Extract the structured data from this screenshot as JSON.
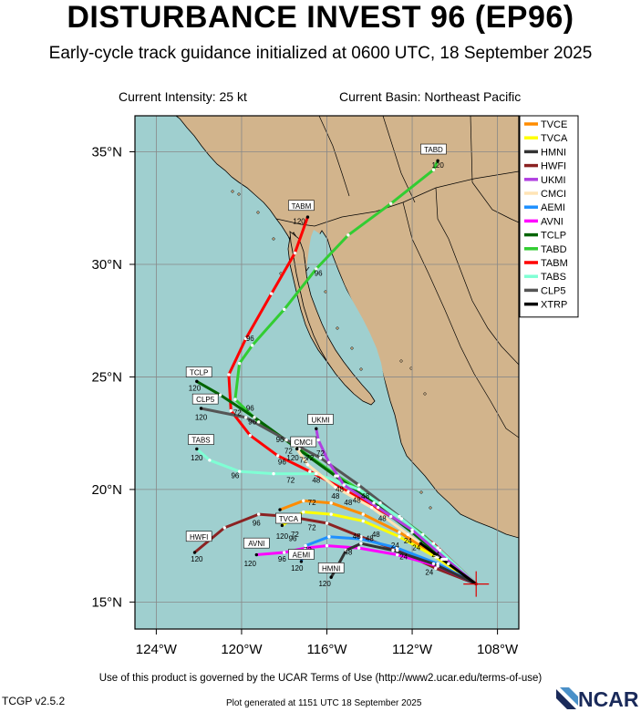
{
  "title": "DISTURBANCE INVEST 96 (EP96)",
  "subtitle": "Early-cycle track guidance initialized at 0600 UTC, 18 September 2025",
  "current_intensity": "Current Intensity: 25 kt",
  "current_basin": "Current Basin: Northeast Pacific",
  "footer": {
    "terms": "Use of this product is governed by the UCAR Terms of Use (http://www2.ucar.edu/terms-of-use)",
    "version": "TCGP v2.5.2",
    "generated": "Plot generated at 1151 UTC   18 September 2025",
    "logo": "NCAR"
  },
  "colors": {
    "ocean": "#9fcfcf",
    "land": "#d2b48c"
  },
  "map": {
    "lon_range": [
      -125,
      -107
    ],
    "lat_range": [
      13.8,
      36.6
    ],
    "lon_ticks": [
      {
        "lon": -124,
        "label": "124°W"
      },
      {
        "lon": -120,
        "label": "120°W"
      },
      {
        "lon": -116,
        "label": "116°W"
      },
      {
        "lon": -112,
        "label": "112°W"
      },
      {
        "lon": -108,
        "label": "108°W"
      }
    ],
    "lat_ticks": [
      {
        "lat": 15,
        "label": "15°N"
      },
      {
        "lat": 20,
        "label": "20°N"
      },
      {
        "lat": 25,
        "label": "25°N"
      },
      {
        "lat": 30,
        "label": "30°N"
      },
      {
        "lat": 35,
        "label": "35°N"
      }
    ],
    "init_point": {
      "lon": -109,
      "lat": 15.8
    }
  },
  "chart_data": {
    "type": "track_map",
    "legend": [
      {
        "name": "TVCE",
        "color": "#ff8c00"
      },
      {
        "name": "TVCA",
        "color": "#ffff00"
      },
      {
        "name": "HMNI",
        "color": "#333333"
      },
      {
        "name": "HWFI",
        "color": "#8b2222"
      },
      {
        "name": "UKMI",
        "color": "#b040e0"
      },
      {
        "name": "CMCI",
        "color": "#ffe4b5"
      },
      {
        "name": "AEMI",
        "color": "#1e90ff"
      },
      {
        "name": "AVNI",
        "color": "#ff00ff"
      },
      {
        "name": "TCLP",
        "color": "#006400"
      },
      {
        "name": "TABD",
        "color": "#32cd32"
      },
      {
        "name": "TABM",
        "color": "#ff0000"
      },
      {
        "name": "TABS",
        "color": "#7fffd4"
      },
      {
        "name": "CLP5",
        "color": "#555555"
      },
      {
        "name": "XTRP",
        "color": "#000000"
      }
    ],
    "tracks": [
      {
        "name": "TABD",
        "color": "#32cd32",
        "points": [
          [
            -109,
            15.8
          ],
          [
            -111.5,
            18
          ],
          [
            -113.5,
            19.4
          ],
          [
            -115.5,
            20.6
          ],
          [
            -117.3,
            21.8
          ],
          [
            -119.2,
            23
          ],
          [
            -120.3,
            24
          ],
          [
            -120.1,
            25.6
          ],
          [
            -119.5,
            26.4
          ],
          [
            -118,
            28
          ],
          [
            -116.5,
            29.8
          ],
          [
            -115,
            31.3
          ],
          [
            -113,
            32.7
          ],
          [
            -111,
            34.2
          ],
          [
            -110.8,
            34.6
          ]
        ],
        "hour_labels": [
          {
            "text": "96",
            "lon": -116.4,
            "lat": 29.5
          },
          {
            "text": "120",
            "lon": -110.8,
            "lat": 34.3
          }
        ],
        "end_box": {
          "text": "TABD",
          "lon": -111,
          "lat": 35.1
        }
      },
      {
        "name": "TABM",
        "color": "#ff0000",
        "points": [
          [
            -109,
            15.8
          ],
          [
            -111,
            17.6
          ],
          [
            -113,
            18.8
          ],
          [
            -115,
            19.9
          ],
          [
            -116.8,
            20.8
          ],
          [
            -118.3,
            21.5
          ],
          [
            -119.6,
            22.4
          ],
          [
            -120.5,
            23.5
          ],
          [
            -120.6,
            25.1
          ],
          [
            -119.8,
            26.7
          ],
          [
            -118.6,
            28.7
          ],
          [
            -117.5,
            30.5
          ],
          [
            -116.9,
            32.1
          ]
        ],
        "hour_labels": [
          {
            "text": "96",
            "lon": -119.6,
            "lat": 26.6
          },
          {
            "text": "120",
            "lon": -117.3,
            "lat": 31.8
          }
        ],
        "end_box": {
          "text": "TABM",
          "lon": -117.2,
          "lat": 32.6
        }
      },
      {
        "name": "TCLP",
        "color": "#006400",
        "points": [
          [
            -109,
            15.8
          ],
          [
            -110.5,
            16.9
          ],
          [
            -112,
            18.1
          ],
          [
            -113.8,
            19.4
          ],
          [
            -115.6,
            20.6
          ],
          [
            -117.5,
            21.9
          ],
          [
            -119.4,
            23.2
          ],
          [
            -121,
            24.2
          ],
          [
            -122.1,
            24.8
          ]
        ],
        "hour_labels": [
          {
            "text": "72",
            "lon": -117.1,
            "lat": 21.2
          },
          {
            "text": "120",
            "lon": -122.2,
            "lat": 24.4
          }
        ],
        "end_box": {
          "text": "TCLP",
          "lon": -122,
          "lat": 25.2
        }
      },
      {
        "name": "CLP5",
        "color": "#555555",
        "points": [
          [
            -109,
            15.8
          ],
          [
            -110.8,
            17.4
          ],
          [
            -112.6,
            18.8
          ],
          [
            -114.5,
            20.2
          ],
          [
            -116.3,
            21.4
          ],
          [
            -117.9,
            22.2
          ],
          [
            -119.8,
            23.2
          ],
          [
            -121.9,
            23.6
          ]
        ],
        "hour_labels": [
          {
            "text": "72",
            "lon": -117.8,
            "lat": 21.6
          },
          {
            "text": "120",
            "lon": -121.9,
            "lat": 23.1
          }
        ],
        "end_box": {
          "text": "CLP5",
          "lon": -121.7,
          "lat": 24.0
        }
      },
      {
        "name": "TABS",
        "color": "#7fffd4",
        "points": [
          [
            -109,
            15.8
          ],
          [
            -110.7,
            17.3
          ],
          [
            -112.5,
            18.7
          ],
          [
            -114.5,
            20
          ],
          [
            -116.5,
            20.7
          ],
          [
            -118.5,
            20.7
          ],
          [
            -120.1,
            20.8
          ],
          [
            -121.5,
            21.3
          ],
          [
            -122.1,
            21.8
          ]
        ],
        "hour_labels": [
          {
            "text": "96",
            "lon": -120.3,
            "lat": 20.5
          },
          {
            "text": "48",
            "lon": -116.5,
            "lat": 20.3
          },
          {
            "text": "120",
            "lon": -122.1,
            "lat": 21.3
          }
        ],
        "end_box": {
          "text": "TABS",
          "lon": -121.9,
          "lat": 22.2
        }
      },
      {
        "name": "UKMI",
        "color": "#b040e0",
        "points": [
          [
            -109,
            15.8
          ],
          [
            -110.4,
            16.9
          ],
          [
            -112,
            18.2
          ],
          [
            -113.6,
            19.2
          ],
          [
            -115.2,
            20.2
          ],
          [
            -115.9,
            21.2
          ],
          [
            -116.4,
            22.2
          ],
          [
            -116.5,
            22.7
          ]
        ],
        "hour_labels": [
          {
            "text": "48",
            "lon": -115.4,
            "lat": 19.9
          },
          {
            "text": "72",
            "lon": -116.3,
            "lat": 21.5
          }
        ],
        "end_box": {
          "text": "UKMI",
          "lon": -116.3,
          "lat": 23.1
        }
      },
      {
        "name": "CMCI",
        "color": "#ffe4b5",
        "points": [
          [
            -109,
            15.8
          ],
          [
            -110.6,
            16.9
          ],
          [
            -112.2,
            18
          ],
          [
            -113.9,
            19.2
          ],
          [
            -115.6,
            20.1
          ],
          [
            -116.9,
            21.1
          ],
          [
            -117.4,
            21.8
          ]
        ],
        "hour_labels": [
          {
            "text": "48",
            "lon": -115.6,
            "lat": 19.6
          },
          {
            "text": "120",
            "lon": -117.6,
            "lat": 21.3
          }
        ],
        "end_box": {
          "text": "CMCI",
          "lon": -117.1,
          "lat": 22.1
        }
      },
      {
        "name": "TVCE",
        "color": "#ff8c00",
        "points": [
          [
            -109,
            15.8
          ],
          [
            -110.8,
            17
          ],
          [
            -112.6,
            18.1
          ],
          [
            -114.3,
            18.9
          ],
          [
            -115.8,
            19.4
          ],
          [
            -117.1,
            19.5
          ],
          [
            -118.2,
            19.1
          ]
        ],
        "hour_labels": [
          {
            "text": "48",
            "lon": -115,
            "lat": 19.3
          },
          {
            "text": "72",
            "lon": -116.7,
            "lat": 19.3
          }
        ],
        "end_box": null
      },
      {
        "name": "TVCA",
        "color": "#ffff00",
        "points": [
          [
            -109,
            15.8
          ],
          [
            -110.9,
            17
          ],
          [
            -112.6,
            17.9
          ],
          [
            -114.3,
            18.6
          ],
          [
            -115.8,
            18.9
          ],
          [
            -117.1,
            19
          ],
          [
            -118.1,
            18.4
          ]
        ],
        "hour_labels": [
          {
            "text": "72",
            "lon": -116.7,
            "lat": 18.2
          },
          {
            "text": "120",
            "lon": -118.1,
            "lat": 17.8
          }
        ],
        "end_box": {
          "text": "TVCA",
          "lon": -117.8,
          "lat": 18.7
        }
      },
      {
        "name": "HWFI",
        "color": "#8b2222",
        "points": [
          [
            -109,
            15.8
          ],
          [
            -110.9,
            16.5
          ],
          [
            -112.7,
            17.3
          ],
          [
            -114.4,
            17.9
          ],
          [
            -116,
            18.5
          ],
          [
            -117.8,
            18.8
          ],
          [
            -119.2,
            18.9
          ],
          [
            -120.8,
            18.3
          ],
          [
            -122.2,
            17.2
          ]
        ],
        "hour_labels": [
          {
            "text": "96",
            "lon": -119.3,
            "lat": 18.4
          },
          {
            "text": "120",
            "lon": -122.1,
            "lat": 16.8
          }
        ],
        "end_box": {
          "text": "HWFI",
          "lon": -122,
          "lat": 17.9
        }
      },
      {
        "name": "AEMI",
        "color": "#1e90ff",
        "points": [
          [
            -109,
            15.8
          ],
          [
            -110.8,
            16.7
          ],
          [
            -112.7,
            17.4
          ],
          [
            -114.4,
            17.8
          ],
          [
            -115.9,
            17.9
          ],
          [
            -117,
            17.5
          ],
          [
            -117.2,
            16.8
          ]
        ],
        "hour_labels": [
          {
            "text": "72",
            "lon": -116.9,
            "lat": 17.2
          },
          {
            "text": "120",
            "lon": -117.4,
            "lat": 16.4
          }
        ],
        "end_box": {
          "text": "AEMI",
          "lon": -117.2,
          "lat": 17.1
        }
      },
      {
        "name": "AVNI",
        "color": "#ff00ff",
        "points": [
          [
            -109,
            15.8
          ],
          [
            -110.8,
            16.6
          ],
          [
            -112.7,
            17.1
          ],
          [
            -114.5,
            17.4
          ],
          [
            -116,
            17.5
          ],
          [
            -117,
            17.4
          ],
          [
            -118,
            17.2
          ],
          [
            -119.3,
            17.1
          ]
        ],
        "hour_labels": [
          {
            "text": "96",
            "lon": -118.1,
            "lat": 16.8
          },
          {
            "text": "120",
            "lon": -119.6,
            "lat": 16.6
          }
        ],
        "end_box": {
          "text": "AVNI",
          "lon": -119.3,
          "lat": 17.6
        }
      },
      {
        "name": "HMNI",
        "color": "#333333",
        "points": [
          [
            -109,
            15.8
          ],
          [
            -111,
            16.7
          ],
          [
            -112.9,
            17.3
          ],
          [
            -114.4,
            17.6
          ],
          [
            -115.1,
            17.3
          ],
          [
            -115.5,
            16.6
          ],
          [
            -115.8,
            16.1
          ]
        ],
        "hour_labels": [
          {
            "text": "48",
            "lon": -115,
            "lat": 17.1
          },
          {
            "text": "120",
            "lon": -116.1,
            "lat": 15.7
          }
        ],
        "end_box": {
          "text": "HMNI",
          "lon": -115.8,
          "lat": 16.5
        }
      },
      {
        "name": "XTRP",
        "color": "#000000",
        "points": [
          [
            -109,
            15.8
          ],
          [
            -110.3,
            16.7
          ],
          [
            -111.6,
            17.6
          ]
        ],
        "hour_labels": [
          {
            "text": "24",
            "lon": -111.8,
            "lat": 17.3
          }
        ],
        "end_box": null
      }
    ],
    "extra_hour_labels": [
      {
        "text": "24",
        "lon": -111.2,
        "lat": 16.2
      },
      {
        "text": "24",
        "lon": -110.9,
        "lat": 17.0
      },
      {
        "text": "24",
        "lon": -112.2,
        "lat": 17.6
      },
      {
        "text": "24",
        "lon": -112.8,
        "lat": 17.4
      },
      {
        "text": "48",
        "lon": -113.7,
        "lat": 17.9
      },
      {
        "text": "48",
        "lon": -113.4,
        "lat": 18.6
      },
      {
        "text": "48",
        "lon": -114.2,
        "lat": 19.6
      },
      {
        "text": "72",
        "lon": -116.8,
        "lat": 21.3
      },
      {
        "text": "96",
        "lon": -119.5,
        "lat": 22.9
      },
      {
        "text": "96",
        "lon": -118.2,
        "lat": 22.1
      },
      {
        "text": "96",
        "lon": -118.1,
        "lat": 21.1
      },
      {
        "text": "72",
        "lon": -117.7,
        "lat": 20.3
      },
      {
        "text": "48",
        "lon": -114.6,
        "lat": 19.4
      },
      {
        "text": "72",
        "lon": -117.5,
        "lat": 17.9
      },
      {
        "text": "96",
        "lon": -117.6,
        "lat": 17.7
      },
      {
        "text": "48",
        "lon": -114.6,
        "lat": 17.8
      },
      {
        "text": "48",
        "lon": -114,
        "lat": 17.7
      },
      {
        "text": "24",
        "lon": -112.4,
        "lat": 16.9
      },
      {
        "text": "72",
        "lon": -120.2,
        "lat": 23.3
      },
      {
        "text": "96",
        "lon": -119.6,
        "lat": 23.5
      }
    ]
  }
}
